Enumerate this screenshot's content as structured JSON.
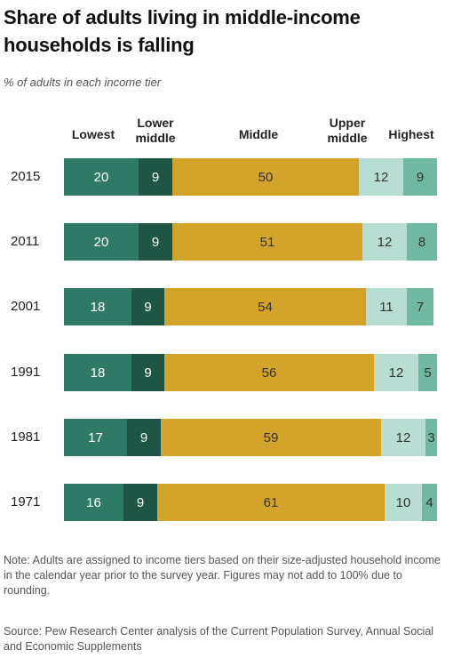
{
  "title": "Share of adults living in middle-income households is falling",
  "subtitle": "% of adults in each income tier",
  "headers": {
    "lowest": "Lowest",
    "lower_middle": "Lower middle",
    "middle": "Middle",
    "upper_middle": "Upper middle",
    "highest": "Highest"
  },
  "colors": {
    "lowest": "#2f7a67",
    "lower_middle": "#1e5545",
    "middle": "#d4a32a",
    "upper_middle": "#b8ded4",
    "highest": "#6fb9a3"
  },
  "chart_data": {
    "type": "bar",
    "stacked": true,
    "orientation": "horizontal",
    "categories": [
      "2015",
      "2011",
      "2001",
      "1991",
      "1981",
      "1971"
    ],
    "series": [
      {
        "name": "Lowest",
        "values": [
          20,
          20,
          18,
          18,
          17,
          16
        ]
      },
      {
        "name": "Lower middle",
        "values": [
          9,
          9,
          9,
          9,
          9,
          9
        ]
      },
      {
        "name": "Middle",
        "values": [
          50,
          51,
          54,
          56,
          59,
          61
        ]
      },
      {
        "name": "Upper middle",
        "values": [
          12,
          12,
          11,
          12,
          12,
          10
        ]
      },
      {
        "name": "Highest",
        "values": [
          9,
          8,
          7,
          5,
          3,
          4
        ]
      }
    ],
    "data_labels": true
  },
  "note": "Note: Adults are assigned to income tiers based on their size-adjusted household income in the calendar year prior to the survey year. Figures may not add to 100% due to rounding.",
  "source": "Source: Pew Research Center analysis of the Current Population Survey, Annual Social and Economic Supplements"
}
